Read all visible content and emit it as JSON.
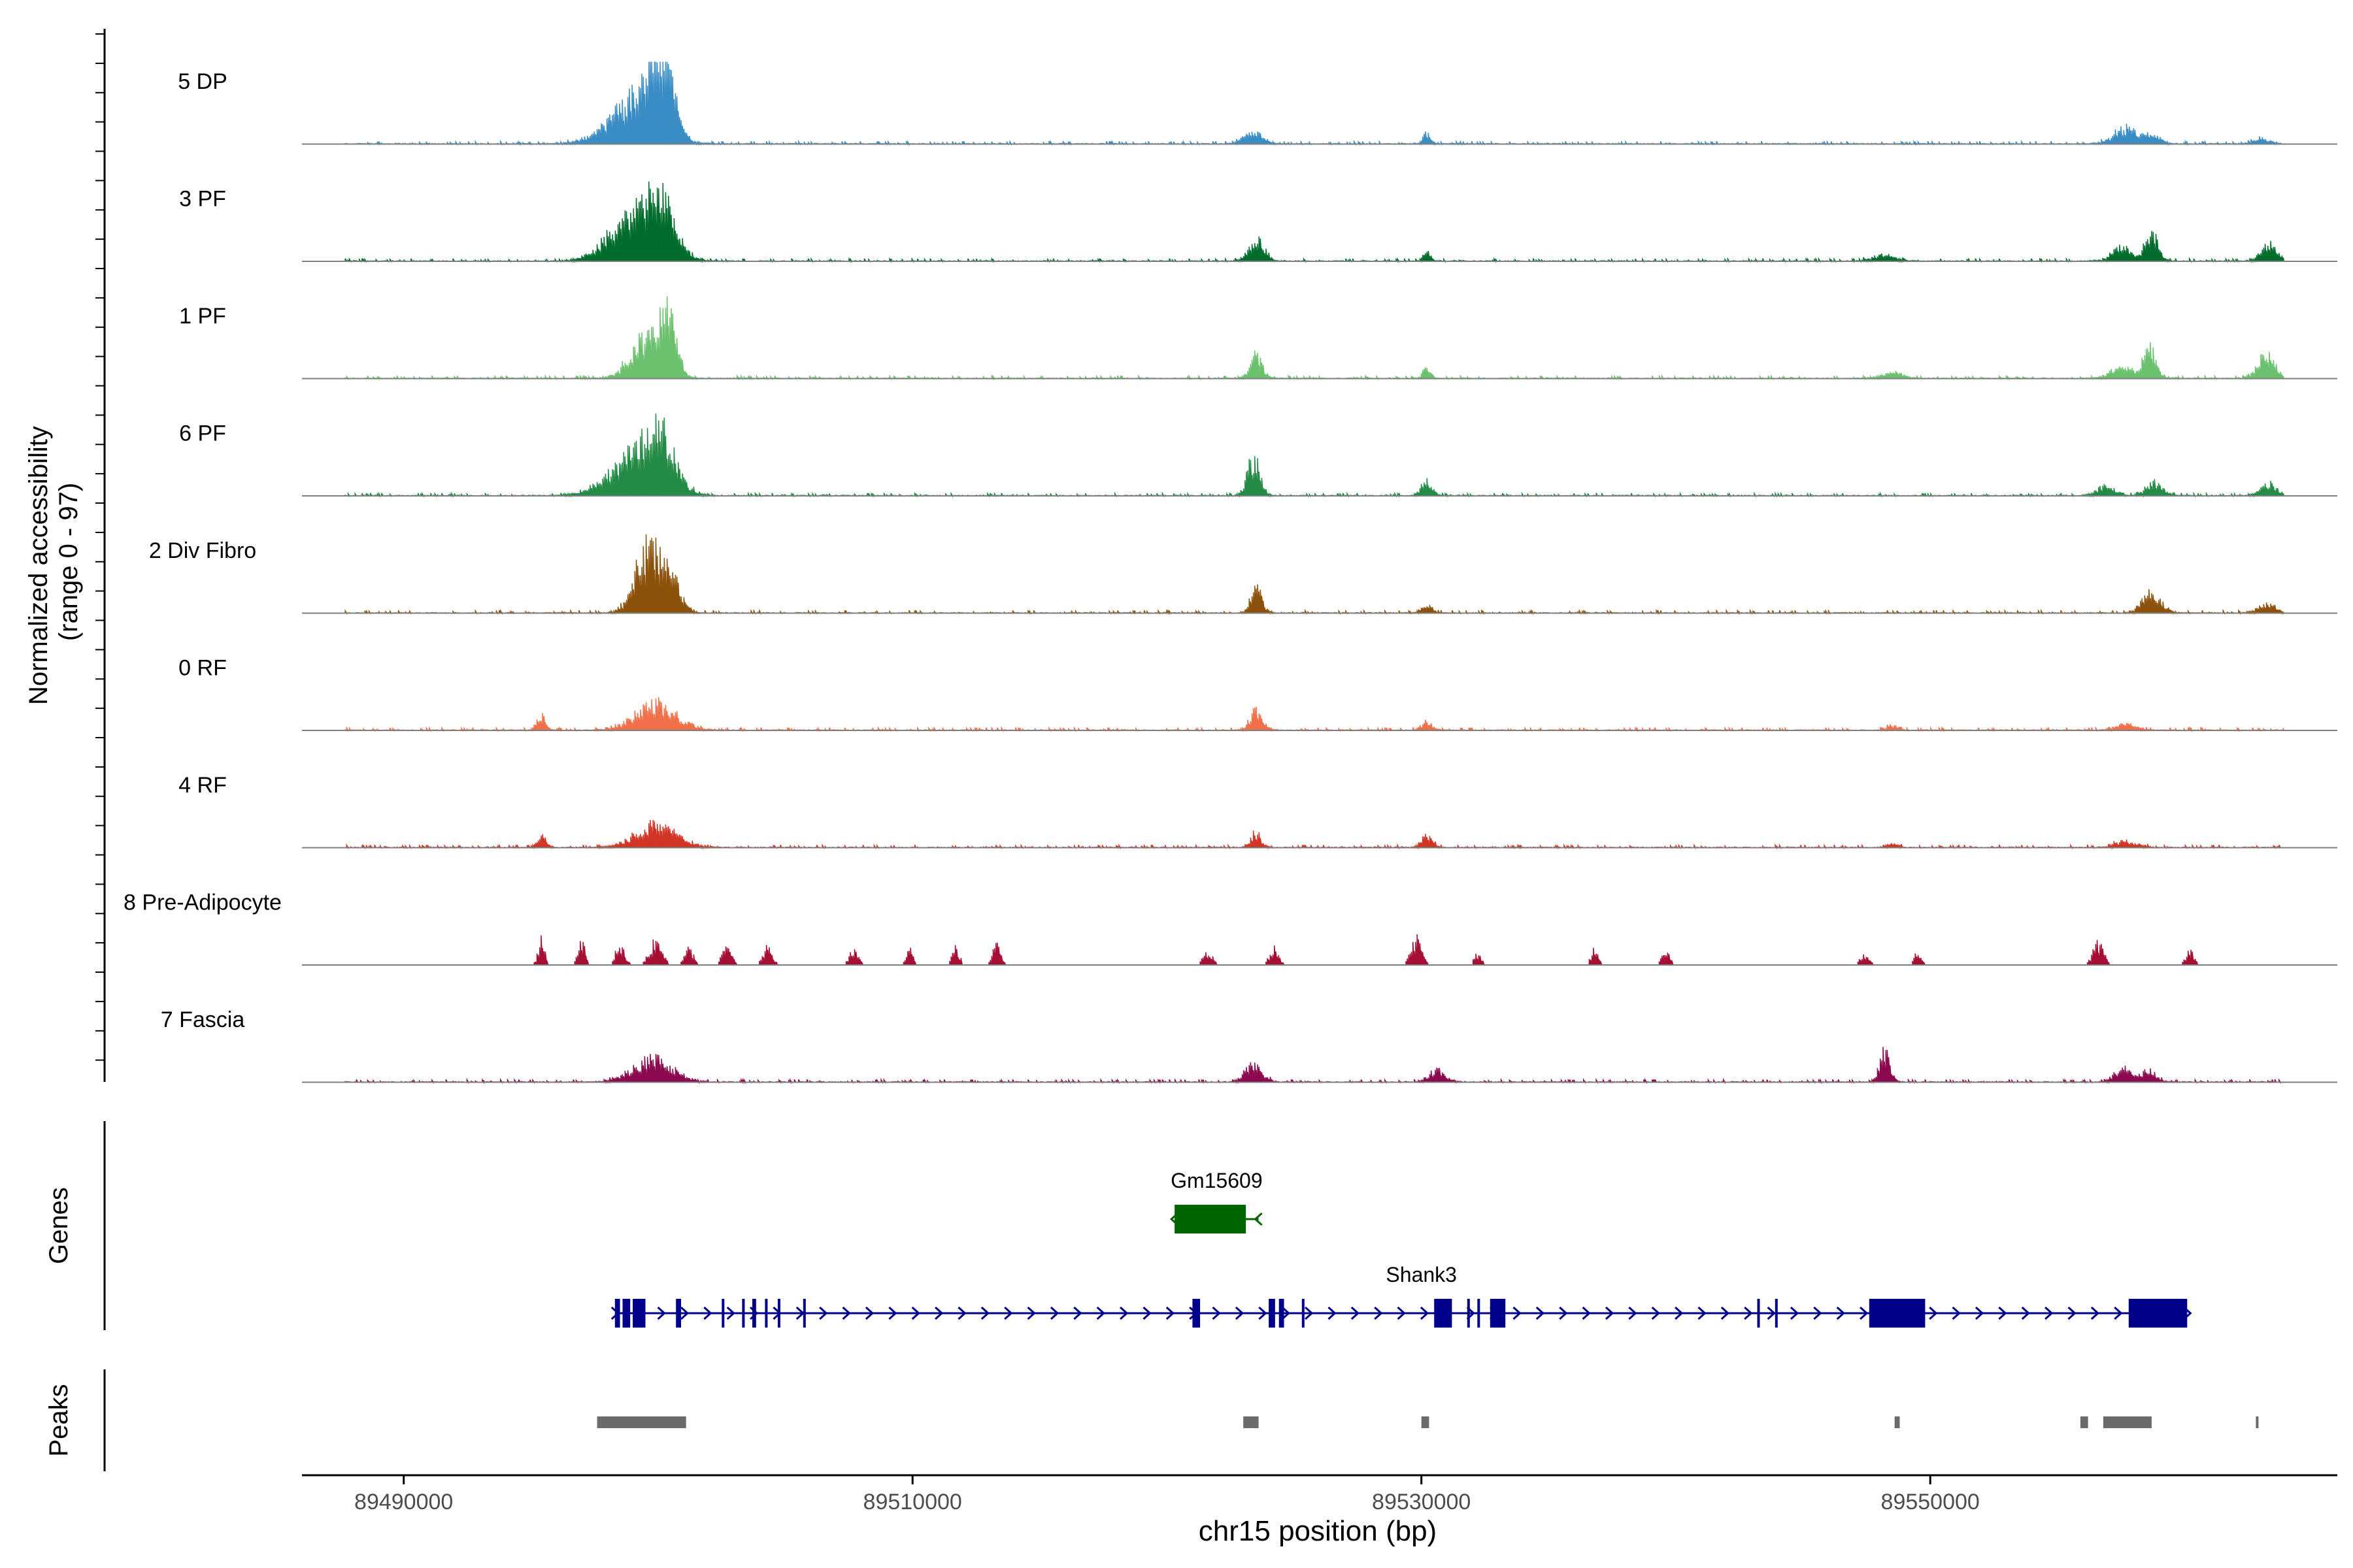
{
  "chart_data": {
    "type": "coverage",
    "ylabel_line1": "Normalized accessibility",
    "ylabel_line2": "(range 0 - 97)",
    "xlabel": "chr15 position (bp)",
    "xlim": [
      89486000,
      89566000
    ],
    "x_ticks": [
      89490000,
      89510000,
      89530000,
      89550000
    ],
    "x_tick_labels": [
      "89490000",
      "89510000",
      "89530000",
      "89550000"
    ],
    "data_start": 89487700,
    "data_end": 89563900,
    "y_range": [
      0,
      97
    ],
    "tracks": [
      {
        "name": "5 DP",
        "color": "#3a8cc4",
        "peaks": [
          [
            89499000,
            60,
            1400
          ],
          [
            89499900,
            78,
            700
          ],
          [
            89500400,
            60,
            450
          ],
          [
            89523400,
            20,
            500
          ],
          [
            89530200,
            16,
            200
          ],
          [
            89557700,
            22,
            700
          ],
          [
            89558700,
            10,
            500
          ],
          [
            89563000,
            9,
            400
          ]
        ]
      },
      {
        "name": "3 PF",
        "color": "#006d2c",
        "peaks": [
          [
            89499000,
            70,
            1300
          ],
          [
            89500100,
            78,
            800
          ],
          [
            89523500,
            30,
            450
          ],
          [
            89530200,
            16,
            200
          ],
          [
            89548200,
            10,
            600
          ],
          [
            89557500,
            22,
            500
          ],
          [
            89558700,
            50,
            350
          ],
          [
            89563300,
            26,
            450
          ]
        ]
      },
      {
        "name": "1 PF",
        "color": "#6cc16e",
        "peaks": [
          [
            89499600,
            65,
            900
          ],
          [
            89500400,
            98,
            400
          ],
          [
            89523500,
            33,
            350
          ],
          [
            89530200,
            18,
            200
          ],
          [
            89548500,
            8,
            600
          ],
          [
            89557500,
            18,
            600
          ],
          [
            89558600,
            45,
            350
          ],
          [
            89563200,
            38,
            450
          ]
        ]
      },
      {
        "name": "6 PF",
        "color": "#238b45",
        "peaks": [
          [
            89499000,
            58,
            1400
          ],
          [
            89500100,
            75,
            800
          ],
          [
            89523400,
            55,
            350
          ],
          [
            89530200,
            24,
            300
          ],
          [
            89556900,
            15,
            500
          ],
          [
            89558800,
            20,
            450
          ],
          [
            89563300,
            18,
            450
          ]
        ]
      },
      {
        "name": "2 Div Fibro",
        "color": "#8c510a",
        "peaks": [
          [
            89499600,
            100,
            700
          ],
          [
            89500500,
            55,
            500
          ],
          [
            89523500,
            40,
            300
          ],
          [
            89530200,
            10,
            300
          ],
          [
            89558700,
            32,
            500
          ],
          [
            89563200,
            14,
            450
          ]
        ]
      },
      {
        "name": "0 RF",
        "color": "#f0704a",
        "peaks": [
          [
            89495400,
            22,
            250
          ],
          [
            89499900,
            42,
            1100
          ],
          [
            89523500,
            30,
            350
          ],
          [
            89530200,
            12,
            300
          ],
          [
            89548500,
            8,
            300
          ],
          [
            89557700,
            9,
            600
          ]
        ]
      },
      {
        "name": "4 RF",
        "color": "#d03525",
        "peaks": [
          [
            89495400,
            18,
            250
          ],
          [
            89499900,
            35,
            1100
          ],
          [
            89523500,
            20,
            300
          ],
          [
            89530200,
            20,
            300
          ],
          [
            89548500,
            6,
            300
          ],
          [
            89557700,
            10,
            600
          ]
        ]
      },
      {
        "name": "8 Pre-Adipocyte",
        "color": "#a50f34",
        "peaks": [
          [
            89495400,
            38,
            180
          ],
          [
            89497000,
            35,
            200
          ],
          [
            89498500,
            30,
            250
          ],
          [
            89499900,
            35,
            350
          ],
          [
            89501200,
            25,
            250
          ],
          [
            89502700,
            28,
            250
          ],
          [
            89504300,
            30,
            250
          ],
          [
            89507700,
            25,
            250
          ],
          [
            89509900,
            22,
            200
          ],
          [
            89511700,
            25,
            200
          ],
          [
            89513300,
            28,
            220
          ],
          [
            89521600,
            20,
            250
          ],
          [
            89524200,
            25,
            250
          ],
          [
            89529800,
            38,
            300
          ],
          [
            89532200,
            15,
            220
          ],
          [
            89536800,
            22,
            200
          ],
          [
            89539600,
            25,
            200
          ],
          [
            89547400,
            15,
            250
          ],
          [
            89549500,
            20,
            200
          ],
          [
            89556600,
            32,
            300
          ],
          [
            89560200,
            20,
            220
          ]
        ]
      },
      {
        "name": "7 Fascia",
        "color": "#8b0a4f",
        "peaks": [
          [
            89499800,
            35,
            1100
          ],
          [
            89523400,
            28,
            450
          ],
          [
            89530600,
            18,
            450
          ],
          [
            89548200,
            45,
            300
          ],
          [
            89557600,
            20,
            500
          ],
          [
            89558600,
            18,
            400
          ]
        ]
      }
    ],
    "genes_label": "Genes",
    "genes": [
      {
        "name": "Gm15609",
        "color": "#006400",
        "start": 89520300,
        "end": 89523600,
        "strand": "-",
        "exons": [
          [
            89520300,
            89523100
          ]
        ]
      },
      {
        "name": "Shank3",
        "color": "#00008b",
        "start": 89498300,
        "end": 89560100,
        "strand": "+",
        "exons": [
          [
            89498300,
            89498500
          ],
          [
            89498600,
            89498900
          ],
          [
            89499000,
            89499500
          ],
          [
            89500700,
            89500900
          ],
          [
            89502500,
            89502600
          ],
          [
            89503300,
            89503400
          ],
          [
            89503700,
            89503850
          ],
          [
            89504200,
            89504300
          ],
          [
            89504700,
            89504800
          ],
          [
            89505700,
            89505800
          ],
          [
            89521000,
            89521300
          ],
          [
            89524000,
            89524250
          ],
          [
            89524400,
            89524600
          ],
          [
            89525300,
            89525400
          ],
          [
            89530500,
            89531200
          ],
          [
            89531800,
            89531900
          ],
          [
            89532200,
            89532300
          ],
          [
            89532700,
            89533300
          ],
          [
            89543200,
            89543300
          ],
          [
            89543900,
            89544000
          ],
          [
            89547600,
            89549800
          ],
          [
            89557800,
            89560100
          ]
        ]
      }
    ],
    "peaks_label": "Peaks",
    "peak_color": "#6b6b6b",
    "peak_regions": [
      [
        89497600,
        89501100
      ],
      [
        89523000,
        89523600
      ],
      [
        89530000,
        89530300
      ],
      [
        89548600,
        89548800
      ],
      [
        89555900,
        89556200
      ],
      [
        89556800,
        89558700
      ],
      [
        89562800,
        89562900
      ]
    ]
  }
}
